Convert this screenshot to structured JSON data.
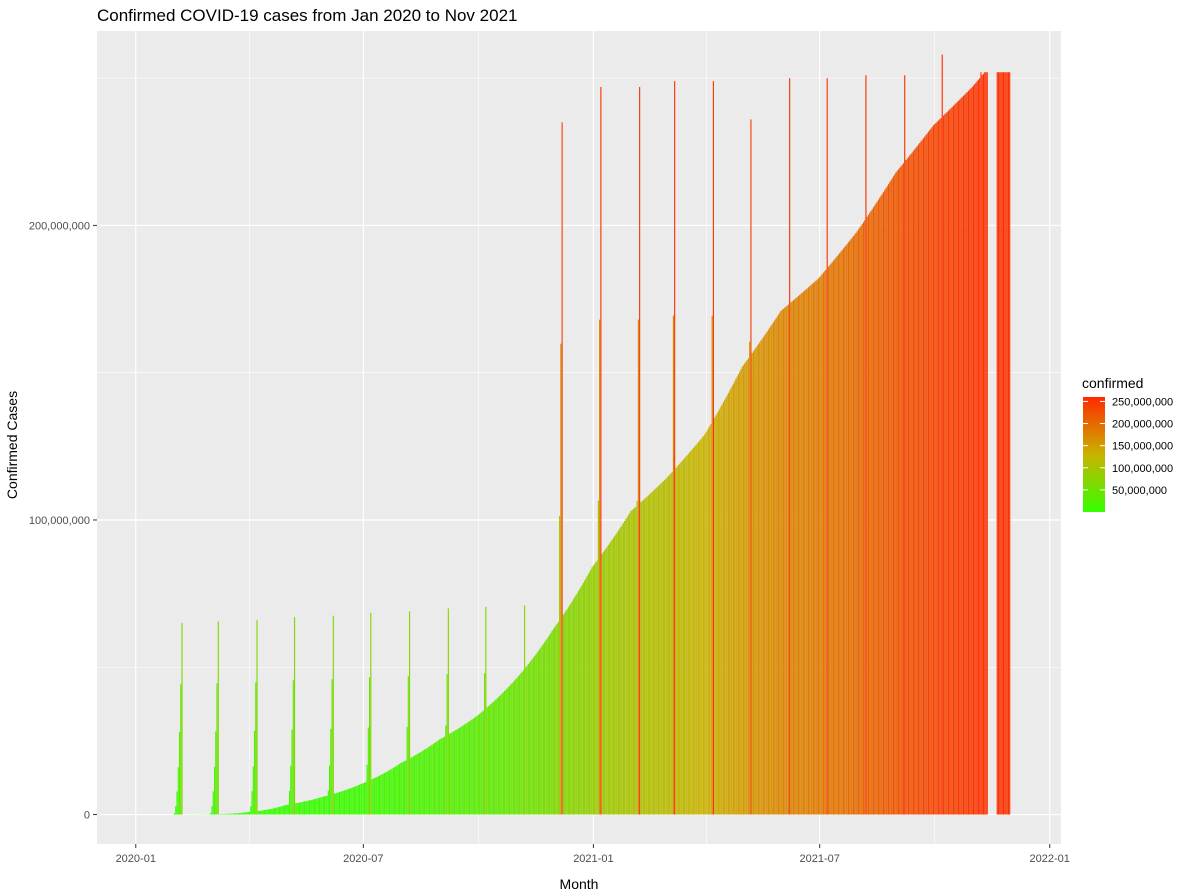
{
  "chart_data": {
    "type": "bar",
    "title": "Confirmed COVID-19 cases from Jan 2020 to Nov 2021",
    "xlabel": "Month",
    "ylabel": "Confirmed Cases",
    "x_ticks": [
      "2020-01",
      "2020-07",
      "2021-01",
      "2021-07",
      "2022-01"
    ],
    "y_ticks": [
      "0",
      "100,000,000",
      "200,000,000"
    ],
    "ylim": [
      -10000000,
      266000000
    ],
    "xlim": [
      "2019-12-01",
      "2022-01-10"
    ],
    "grid": true,
    "legend": {
      "title": "confirmed",
      "position": "right",
      "labels": [
        "250,000,000",
        "200,000,000",
        "150,000,000",
        "100,000,000",
        "50,000,000"
      ],
      "values": [
        250000000,
        200000000,
        150000000,
        100000000,
        50000000
      ]
    },
    "colors": {
      "low": "#33ff00",
      "mid": "#c9b200",
      "high": "#ff2a00",
      "panel": "#ebebeb",
      "gridline": "#ffffff"
    },
    "note": "Daily bars; the first seven days of each month show the end-of-month cumulative totals (spikes).",
    "series": [
      {
        "name": "confirmed",
        "points": [
          [
            "2020-01-22",
            555
          ],
          [
            "2020-01-31",
            9800
          ],
          [
            "2020-02-29",
            86000
          ],
          [
            "2020-03-31",
            860000
          ],
          [
            "2020-04-30",
            3250000
          ],
          [
            "2020-05-31",
            6200000
          ],
          [
            "2020-06-30",
            10500000
          ],
          [
            "2020-07-31",
            17500000
          ],
          [
            "2020-08-31",
            25500000
          ],
          [
            "2020-09-30",
            33500000
          ],
          [
            "2020-10-31",
            46000000
          ],
          [
            "2020-11-30",
            63000000
          ],
          [
            "2020-12-31",
            84000000
          ],
          [
            "2021-01-31",
            103000000
          ],
          [
            "2021-02-28",
            114000000
          ],
          [
            "2021-03-31",
            129000000
          ],
          [
            "2021-04-30",
            152000000
          ],
          [
            "2021-05-31",
            171000000
          ],
          [
            "2021-06-30",
            182000000
          ],
          [
            "2021-07-31",
            198000000
          ],
          [
            "2021-08-31",
            218000000
          ],
          [
            "2021-09-30",
            234000000
          ],
          [
            "2021-10-31",
            247000000
          ],
          [
            "2021-11-10",
            252000000
          ]
        ],
        "spikes": [
          [
            "2020-01",
            64000000
          ],
          [
            "2020-02",
            65000000
          ],
          [
            "2020-03",
            65500000
          ],
          [
            "2020-04",
            66000000
          ],
          [
            "2020-05",
            67000000
          ],
          [
            "2020-06",
            67500000
          ],
          [
            "2020-07",
            68500000
          ],
          [
            "2020-08",
            69000000
          ],
          [
            "2020-09",
            70000000
          ],
          [
            "2020-10",
            70500000
          ],
          [
            "2020-11",
            71000000
          ],
          [
            "2020-12",
            235000000
          ],
          [
            "2021-01",
            247000000
          ],
          [
            "2021-02",
            247000000
          ],
          [
            "2021-03",
            249000000
          ],
          [
            "2021-04",
            249000000
          ],
          [
            "2021-05",
            236000000
          ],
          [
            "2021-06",
            250000000
          ],
          [
            "2021-07",
            250000000
          ],
          [
            "2021-08",
            251000000
          ],
          [
            "2021-09",
            251000000
          ],
          [
            "2021-10",
            258000000
          ],
          [
            "2021-11",
            252000000
          ]
        ]
      }
    ]
  }
}
